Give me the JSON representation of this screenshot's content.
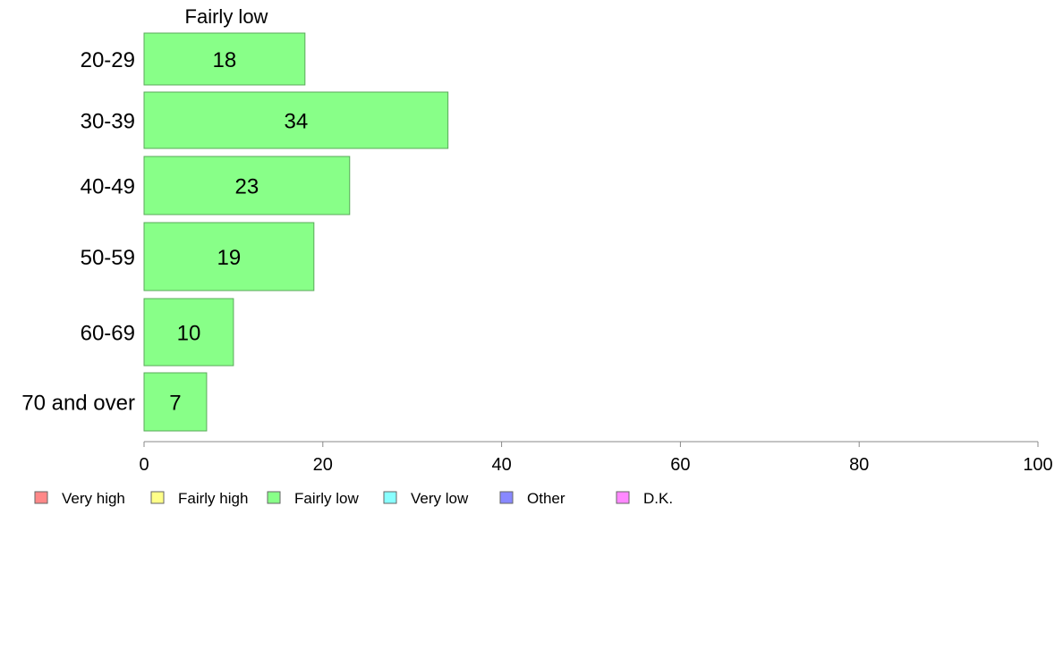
{
  "chart_data": {
    "type": "bar",
    "orientation": "horizontal",
    "series_title": "Fairly low",
    "categories": [
      "20-29",
      "30-39",
      "40-49",
      "50-59",
      "60-69",
      "70 and over"
    ],
    "series": [
      {
        "name": "Fairly low",
        "values": [
          18,
          34,
          23,
          19,
          10,
          7
        ],
        "color": "#88ff88"
      }
    ],
    "xlim": [
      0,
      100
    ],
    "xticks": [
      0,
      20,
      40,
      60,
      80,
      100
    ],
    "grid": false,
    "legend_position": "bottom-left",
    "legend": [
      {
        "label": "Very high",
        "color": "#ff8888"
      },
      {
        "label": "Fairly high",
        "color": "#ffff88"
      },
      {
        "label": "Fairly low",
        "color": "#88ff88"
      },
      {
        "label": "Very low",
        "color": "#88ffff"
      },
      {
        "label": "Other",
        "color": "#8888ff"
      },
      {
        "label": "D.K.",
        "color": "#ff88ff"
      }
    ]
  }
}
